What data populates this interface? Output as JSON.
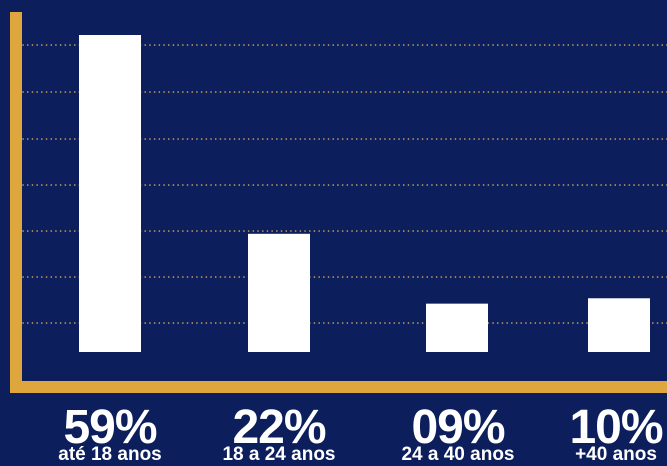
{
  "colors": {
    "background": "#0c1f5c",
    "axis": "#dfa63d",
    "grid": "#d8ac55",
    "bar": "#ffffff",
    "text": "#ffffff"
  },
  "chart_data": {
    "type": "bar",
    "categories": [
      "até 18 anos",
      "18 a 24 anos",
      "24 a 40 anos",
      "+40 anos"
    ],
    "values": [
      59,
      22,
      9,
      10
    ],
    "value_labels": [
      "59%",
      "22%",
      "09%",
      "10%"
    ],
    "grid": true,
    "grid_style": "dotted"
  }
}
